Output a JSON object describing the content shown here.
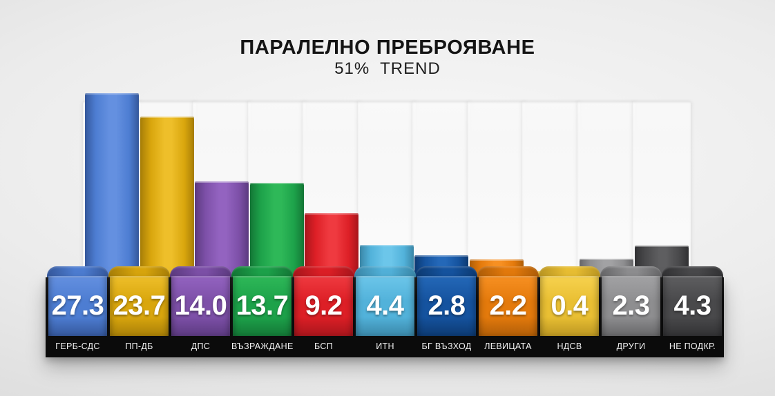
{
  "chart_data": {
    "type": "bar",
    "title": "ПАРАЛЕЛНО ПРЕБРОЯВАНЕ",
    "subtitle": "51%  TREND",
    "categories": [
      "ГЕРБ-СДС",
      "ПП-ДБ",
      "ДПС",
      "ВЪЗРАЖДАНЕ",
      "БСП",
      "ИТН",
      "БГ ВЪЗХОД",
      "ЛЕВИЦАТА",
      "НДСВ",
      "ДРУГИ",
      "НЕ ПОДКР."
    ],
    "values": [
      27.3,
      23.7,
      14.0,
      13.7,
      9.2,
      4.4,
      2.8,
      2.2,
      0.4,
      2.3,
      4.3
    ],
    "value_labels": [
      "27.3",
      "23.7",
      "14.0",
      "13.7",
      "9.2",
      "4.4",
      "2.8",
      "2.2",
      "0.4",
      "2.3",
      "4.3"
    ],
    "bar_colors": [
      "#4d7dd2",
      "#d9a60d",
      "#7d50a8",
      "#1da24a",
      "#dd1f26",
      "#52b2da",
      "#15539f",
      "#e47a0c",
      "#e9bf33",
      "#8e8e90",
      "#49494b"
    ],
    "bar_colors_light": [
      "#6490e0",
      "#eebf2a",
      "#9363c0",
      "#2eb858",
      "#ef3a40",
      "#6cc6ea",
      "#2468b8",
      "#f79022",
      "#f7d24e",
      "#a2a2a4",
      "#5e5e60"
    ],
    "bar_colors_dark": [
      "#35589c",
      "#a87f08",
      "#5c3a80",
      "#147736",
      "#a8161c",
      "#3a87a8",
      "#0d3a72",
      "#b05e08",
      "#bb9622",
      "#676769",
      "#323234"
    ],
    "ylim": [
      0,
      30
    ],
    "legend": false,
    "grid": false,
    "value_text_color": "#ffffff",
    "label_strip_color": "#0b0b0b",
    "background_color": "#e9e9e9"
  }
}
